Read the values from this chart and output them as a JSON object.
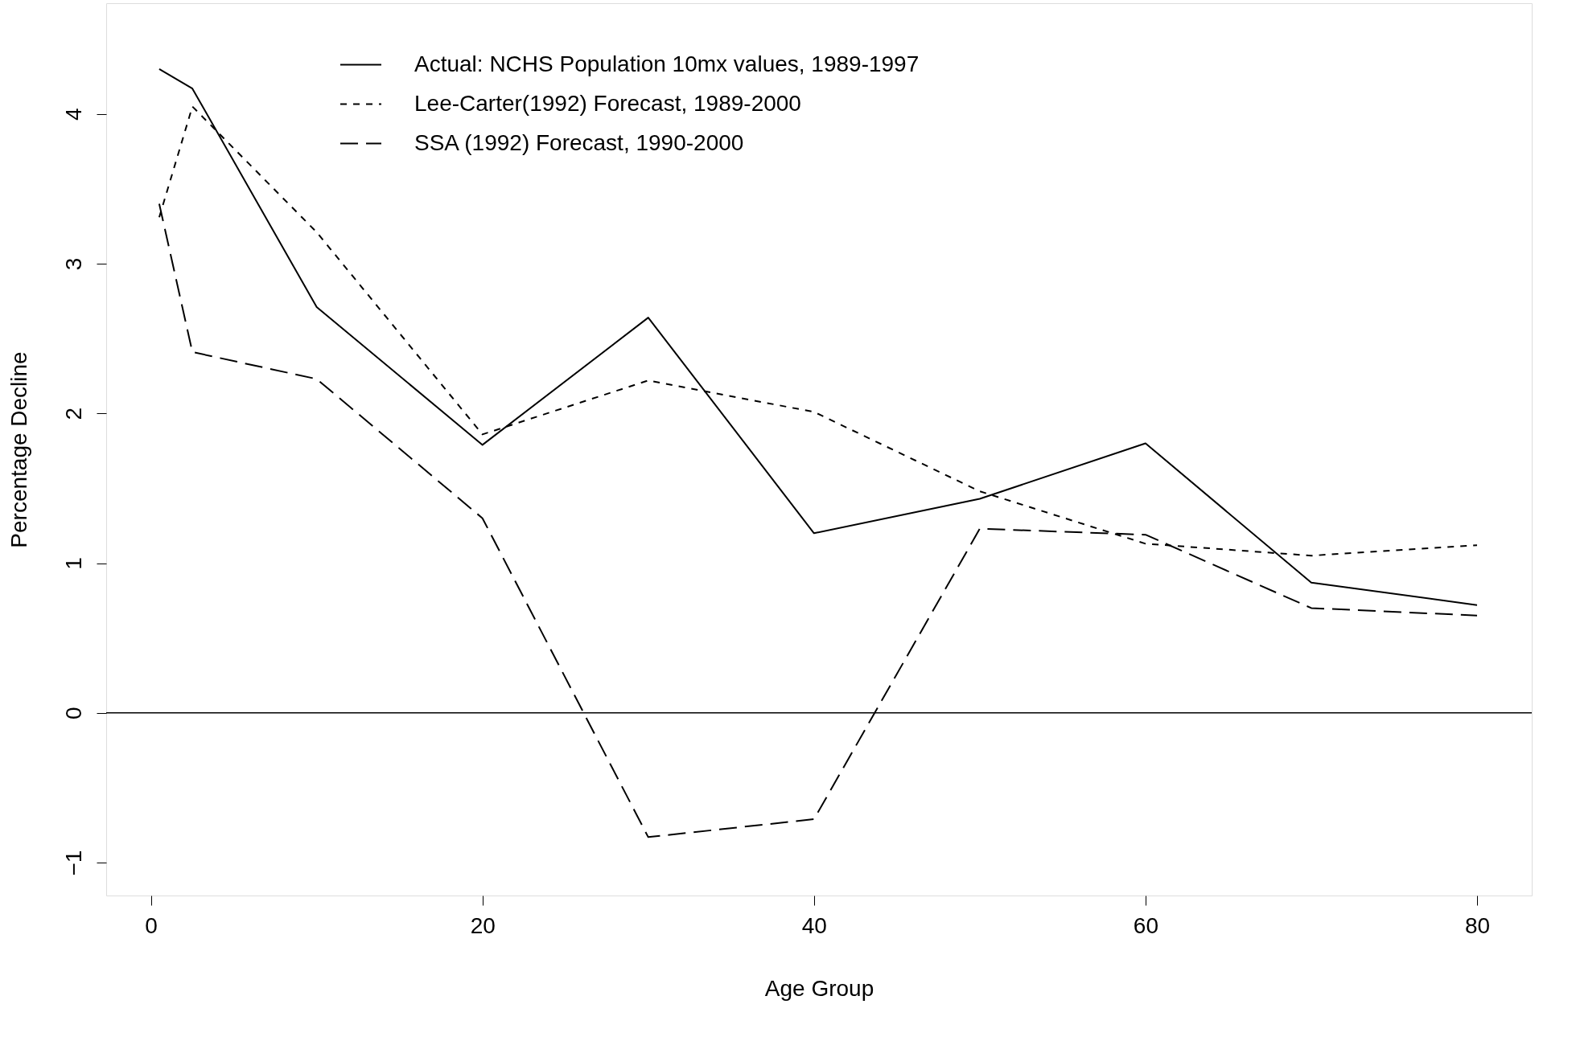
{
  "chart_data": {
    "type": "line",
    "xlabel": "Age Group",
    "ylabel": "Percentage Decline",
    "x": [
      0.5,
      2.5,
      10,
      20,
      30,
      40,
      50,
      60,
      70,
      80
    ],
    "series": [
      {
        "name": "Actual: NCHS Population 10mx values, 1989-1997",
        "color": "#000000",
        "line_style": "solid",
        "values": [
          4.3,
          4.17,
          2.71,
          1.79,
          2.64,
          1.2,
          1.43,
          1.8,
          0.87,
          0.72
        ]
      },
      {
        "name": "Lee-Carter(1992) Forecast, 1989-2000",
        "color": "#000000",
        "line_style": "dotted",
        "values": [
          3.31,
          4.05,
          3.21,
          1.86,
          2.22,
          2.01,
          1.48,
          1.13,
          1.05,
          1.12
        ]
      },
      {
        "name": "SSA (1992) Forecast, 1990-2000",
        "color": "#000000",
        "line_style": "dashed",
        "values": [
          3.4,
          2.41,
          2.23,
          1.3,
          -0.83,
          -0.71,
          1.23,
          1.19,
          0.7,
          0.65
        ]
      }
    ],
    "xlim": [
      -2.7,
      83.3
    ],
    "ylim": [
      -1.22,
      4.74
    ],
    "xticks": [
      0,
      20,
      40,
      60,
      80
    ],
    "yticks": [
      -1,
      0,
      1,
      2,
      3,
      4
    ],
    "ref_lines": [
      {
        "axis": "y",
        "value": 0,
        "color": "#000000"
      }
    ],
    "grid": false,
    "legend": "top",
    "marker": "none"
  }
}
